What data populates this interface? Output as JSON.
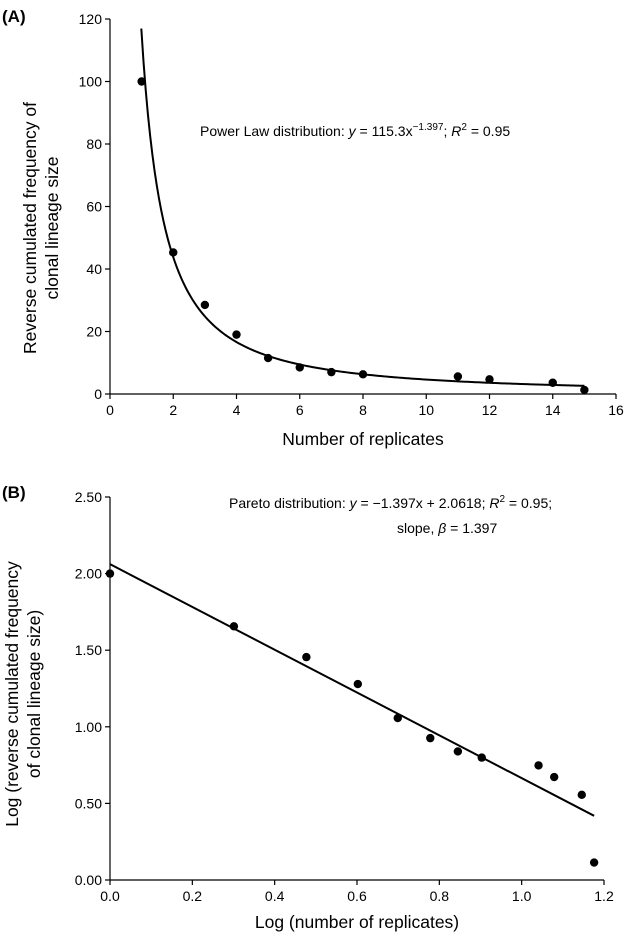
{
  "chart_data": [
    {
      "type": "scatter",
      "panel_label": "(A)",
      "xlabel": "Number of replicates",
      "ylabel_lines": [
        "Reverse cumulated frequency of",
        "clonal lineage size"
      ],
      "xlim": [
        0,
        16
      ],
      "ylim": [
        0,
        120
      ],
      "xticks": [
        0,
        2,
        4,
        6,
        8,
        10,
        12,
        14,
        16
      ],
      "yticks": [
        0,
        20,
        40,
        60,
        80,
        100,
        120
      ],
      "points": [
        {
          "x": 1,
          "y": 100
        },
        {
          "x": 2,
          "y": 45.3
        },
        {
          "x": 3,
          "y": 28.5
        },
        {
          "x": 4,
          "y": 19
        },
        {
          "x": 5,
          "y": 11.5
        },
        {
          "x": 6,
          "y": 8.5
        },
        {
          "x": 7,
          "y": 7
        },
        {
          "x": 8,
          "y": 6.3
        },
        {
          "x": 11,
          "y": 5.6
        },
        {
          "x": 12,
          "y": 4.7
        },
        {
          "x": 14,
          "y": 3.6
        },
        {
          "x": 15,
          "y": 1.3
        }
      ],
      "fit": {
        "kind": "power",
        "a": 115.3,
        "b": -1.397,
        "x_range": [
          0.99,
          15
        ]
      },
      "annotation": {
        "prefix": "Power Law distribution: ",
        "y_var": "y",
        "equation": " = 115.3x",
        "exponent": "−1.397",
        "sep": "; ",
        "r_var": "R",
        "r_sup": "2",
        "r_rest": " = 0.95"
      },
      "grid": false,
      "legend": "none"
    },
    {
      "type": "scatter",
      "panel_label": "(B)",
      "xlabel": "Log (number of replicates)",
      "ylabel_lines": [
        "Log (reverse cumulated frequency",
        "of clonal lineage size)"
      ],
      "xlim": [
        0,
        1.2
      ],
      "ylim": [
        0,
        2.5
      ],
      "xticks": [
        "0.0",
        "0.2",
        "0.4",
        "0.6",
        "0.8",
        "1.0",
        "1.2"
      ],
      "yticks": [
        "0.00",
        "0.50",
        "1.00",
        "1.50",
        "2.00",
        "2.50"
      ],
      "points": [
        {
          "x": 0,
          "y": 2.0
        },
        {
          "x": 0.301,
          "y": 1.656
        },
        {
          "x": 0.477,
          "y": 1.455
        },
        {
          "x": 0.602,
          "y": 1.279
        },
        {
          "x": 0.699,
          "y": 1.057
        },
        {
          "x": 0.778,
          "y": 0.926
        },
        {
          "x": 0.845,
          "y": 0.839
        },
        {
          "x": 0.903,
          "y": 0.799
        },
        {
          "x": 1.041,
          "y": 0.748
        },
        {
          "x": 1.079,
          "y": 0.672
        },
        {
          "x": 1.146,
          "y": 0.556
        },
        {
          "x": 1.176,
          "y": 0.114
        }
      ],
      "fit": {
        "kind": "linear",
        "slope": -1.397,
        "intercept": 2.0618,
        "x_range": [
          0,
          1.176
        ]
      },
      "annotation": {
        "line1_prefix": "Pareto distribution: ",
        "y_var": "y",
        "line1_eq": " = −1.397x + 2.0618; ",
        "r_var": "R",
        "r_sup": "2",
        "r_rest": " = 0.95;",
        "line2_prefix": "slope, ",
        "beta": "β",
        "line2_rest": " = 1.397"
      },
      "grid": false,
      "legend": "none"
    }
  ]
}
